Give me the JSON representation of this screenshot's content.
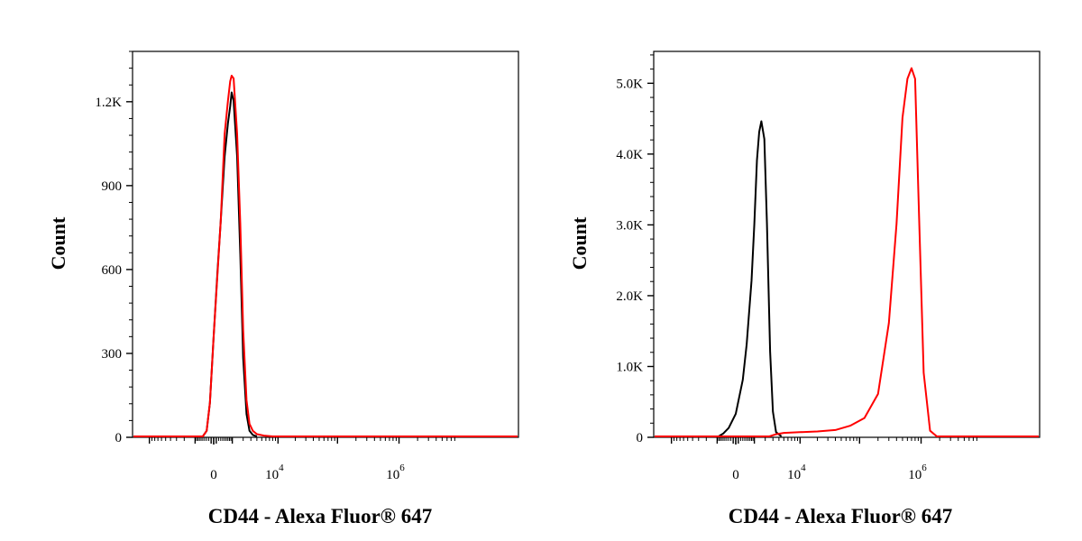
{
  "chart_data": [
    {
      "type": "line",
      "title": "",
      "xlabel": "CD44 - Alexa Fluor® 647",
      "ylabel": "Count",
      "xscale": "biexponential",
      "x_tick_labels": [
        {
          "base": "0",
          "exp": ""
        },
        {
          "base": "10",
          "exp": "4"
        },
        {
          "base": "10",
          "exp": "6"
        }
      ],
      "x_tick_values": [
        0,
        10000,
        1000000
      ],
      "ylim": [
        0,
        1380
      ],
      "y_ticks": [
        {
          "value": 0,
          "label": "0"
        },
        {
          "value": 300,
          "label": "300"
        },
        {
          "value": 600,
          "label": "600"
        },
        {
          "value": 900,
          "label": "900"
        },
        {
          "value": 1200,
          "label": "1.2K"
        }
      ],
      "grid": false,
      "legend": "none",
      "series": [
        {
          "color": "#000000",
          "x": [
            -500,
            -300,
            -150,
            0,
            150,
            300,
            500,
            700,
            850,
            950,
            1100,
            1400,
            1700,
            2000,
            2400,
            2800,
            3300,
            4000
          ],
          "y": [
            0,
            20,
            120,
            360,
            590,
            770,
            1000,
            1120,
            1180,
            1230,
            1200,
            1000,
            650,
            280,
            80,
            20,
            5,
            0
          ]
        },
        {
          "color": "#ff0000",
          "x": [
            -500,
            -300,
            -150,
            0,
            150,
            300,
            500,
            700,
            850,
            950,
            1100,
            1400,
            1700,
            2000,
            2400,
            2800,
            3300,
            4000,
            5500,
            8000,
            1000000
          ],
          "y": [
            0,
            20,
            120,
            360,
            580,
            770,
            1080,
            1200,
            1270,
            1290,
            1280,
            1080,
            760,
            380,
            130,
            45,
            20,
            8,
            3,
            0,
            0
          ]
        }
      ]
    },
    {
      "type": "line",
      "title": "",
      "xlabel": "CD44 - Alexa Fluor® 647",
      "ylabel": "Count",
      "xscale": "biexponential",
      "x_tick_labels": [
        {
          "base": "0",
          "exp": ""
        },
        {
          "base": "10",
          "exp": "4"
        },
        {
          "base": "10",
          "exp": "6"
        }
      ],
      "x_tick_values": [
        0,
        10000,
        1000000
      ],
      "ylim": [
        0,
        5450
      ],
      "y_ticks": [
        {
          "value": 0,
          "label": "0"
        },
        {
          "value": 1000,
          "label": "1.0K"
        },
        {
          "value": 2000,
          "label": "2.0K"
        },
        {
          "value": 3000,
          "label": "3.0K"
        },
        {
          "value": 4000,
          "label": "4.0K"
        },
        {
          "value": 5000,
          "label": "5.0K"
        }
      ],
      "grid": false,
      "legend": "none",
      "series": [
        {
          "color": "#000000",
          "x": [
            -900,
            -600,
            -300,
            0,
            300,
            500,
            800,
            1000,
            1200,
            1400,
            1600,
            1900,
            2200,
            2600,
            3000,
            3500,
            4500
          ],
          "y": [
            0,
            40,
            120,
            320,
            800,
            1300,
            2200,
            3000,
            3900,
            4300,
            4450,
            4200,
            3000,
            1200,
            350,
            60,
            0
          ]
        },
        {
          "color": "#ff0000",
          "x": [
            2500,
            3500,
            5000,
            10000,
            20000,
            40000,
            70000,
            120000,
            200000,
            300000,
            400000,
            500000,
            600000,
            700000,
            800000,
            900000,
            1100000,
            1400000,
            1800000
          ],
          "y": [
            0,
            30,
            50,
            60,
            70,
            90,
            150,
            260,
            600,
            1600,
            3000,
            4500,
            5050,
            5200,
            5050,
            3500,
            900,
            80,
            0
          ]
        }
      ]
    }
  ]
}
